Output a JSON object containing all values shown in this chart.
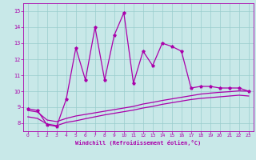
{
  "xlabel": "Windchill (Refroidissement éolien,°C)",
  "xlim": [
    -0.5,
    23.5
  ],
  "ylim": [
    7.5,
    15.5
  ],
  "yticks": [
    8,
    9,
    10,
    11,
    12,
    13,
    14,
    15
  ],
  "xticks": [
    0,
    1,
    2,
    3,
    4,
    5,
    6,
    7,
    8,
    9,
    10,
    11,
    12,
    13,
    14,
    15,
    16,
    17,
    18,
    19,
    20,
    21,
    22,
    23
  ],
  "bg_color": "#c8e8e8",
  "line_color": "#aa00aa",
  "grid_color": "#99cccc",
  "line1_x": [
    0,
    1,
    2,
    3,
    4,
    5,
    6,
    7,
    8,
    9,
    10,
    11,
    12,
    13,
    14,
    15,
    16,
    17,
    18,
    19,
    20,
    21,
    22,
    23
  ],
  "line1_y": [
    8.9,
    8.8,
    7.9,
    7.8,
    9.5,
    12.7,
    10.7,
    14.0,
    10.7,
    13.5,
    14.9,
    10.5,
    12.5,
    11.6,
    13.0,
    12.8,
    12.5,
    10.2,
    10.3,
    10.3,
    10.2,
    10.2,
    10.2,
    10.0
  ],
  "line2_x": [
    0,
    1,
    2,
    3,
    4,
    5,
    6,
    7,
    8,
    9,
    10,
    11,
    12,
    13,
    14,
    15,
    16,
    17,
    18,
    19,
    20,
    21,
    22,
    23
  ],
  "line2_y": [
    8.8,
    8.7,
    8.2,
    8.1,
    8.3,
    8.45,
    8.55,
    8.65,
    8.75,
    8.85,
    8.95,
    9.05,
    9.2,
    9.3,
    9.42,
    9.52,
    9.62,
    9.72,
    9.82,
    9.88,
    9.93,
    9.97,
    10.02,
    10.0
  ],
  "line3_x": [
    0,
    1,
    2,
    3,
    4,
    5,
    6,
    7,
    8,
    9,
    10,
    11,
    12,
    13,
    14,
    15,
    16,
    17,
    18,
    19,
    20,
    21,
    22,
    23
  ],
  "line3_y": [
    8.4,
    8.3,
    7.95,
    7.85,
    8.05,
    8.15,
    8.28,
    8.4,
    8.52,
    8.62,
    8.72,
    8.82,
    8.95,
    9.05,
    9.18,
    9.28,
    9.38,
    9.48,
    9.55,
    9.6,
    9.65,
    9.7,
    9.75,
    9.7
  ]
}
